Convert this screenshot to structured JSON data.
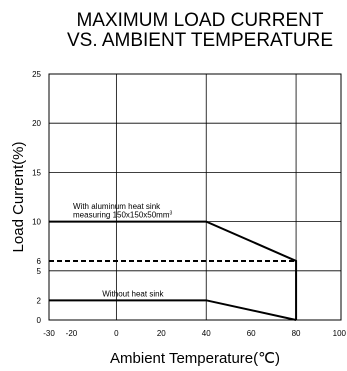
{
  "chart_data": {
    "type": "line",
    "title_lines": [
      "MAXIMUM LOAD CURRENT",
      "VS. AMBIENT TEMPERATURE"
    ],
    "xlabel": "Ambient Temperature(",
    "xlabel_unit": "℃",
    "xlabel_close": ")",
    "ylabel": "Load Current(%)",
    "xlim": [
      -30,
      100
    ],
    "ylim": [
      0,
      25
    ],
    "x_ticks": [
      {
        "value": -30,
        "label": "-30"
      },
      {
        "value": -20,
        "label": "-20"
      },
      {
        "value": 0,
        "label": "0"
      },
      {
        "value": 20,
        "label": "20"
      },
      {
        "value": 40,
        "label": "40"
      },
      {
        "value": 60,
        "label": "60"
      },
      {
        "value": 80,
        "label": "80"
      },
      {
        "value": 100,
        "label": "100"
      }
    ],
    "y_ticks": [
      {
        "value": 0,
        "label": "0"
      },
      {
        "value": 2,
        "label": "2"
      },
      {
        "value": 5,
        "label": "5"
      },
      {
        "value": 6,
        "label": "6"
      },
      {
        "value": 10,
        "label": "10"
      },
      {
        "value": 15,
        "label": "15"
      },
      {
        "value": 20,
        "label": "20"
      },
      {
        "value": 25,
        "label": "25"
      }
    ],
    "x_gridlines": [
      0,
      40,
      80
    ],
    "y_gridlines": [
      5,
      10,
      15,
      20
    ],
    "grid": true,
    "series": [
      {
        "x": [
          -30,
          40,
          80,
          80
        ],
        "y": [
          10,
          10,
          6,
          0
        ],
        "style": "solid",
        "color": "#000000"
      },
      {
        "x": [
          -30,
          40,
          80
        ],
        "y": [
          2,
          2,
          0
        ],
        "style": "solid",
        "color": "#000000"
      },
      {
        "x": [
          -30,
          80
        ],
        "y": [
          6,
          6
        ],
        "style": "dashed",
        "color": "#000000"
      }
    ],
    "annotations": [
      {
        "id": "heatsink-1",
        "text": "With aluminum heat sink",
        "x": -30,
        "y": 11.3
      },
      {
        "id": "heatsink-2",
        "text": "measuring 150x150x50mm",
        "sup": "3",
        "x": -30,
        "y": 10.4
      },
      {
        "id": "noheatsink",
        "text": "Without heat sink",
        "x": -17,
        "y": 2.4
      }
    ]
  }
}
